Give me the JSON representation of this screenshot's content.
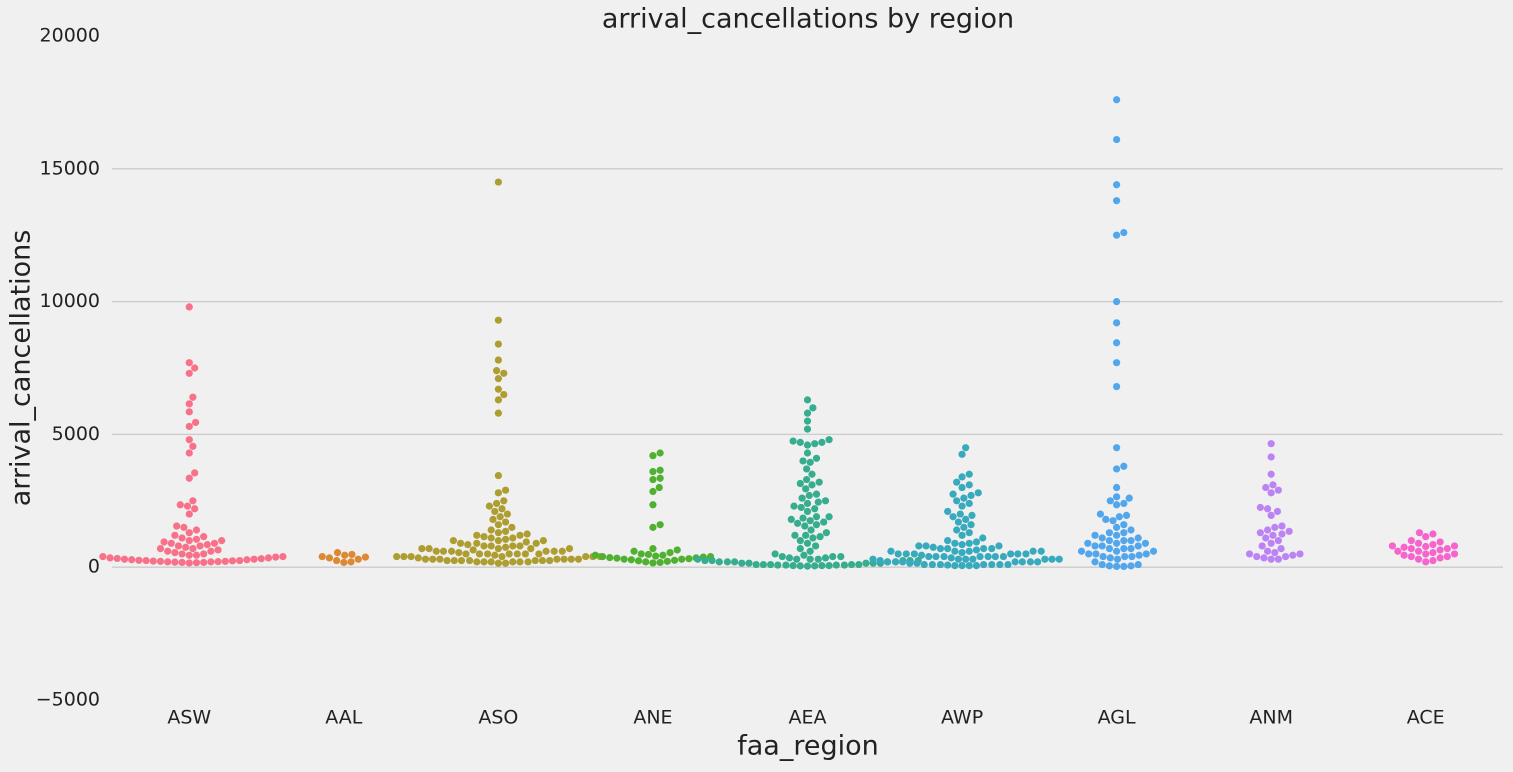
{
  "chart_data": {
    "type": "swarm",
    "title": "arrival_cancellations by region",
    "xlabel": "faa_region",
    "ylabel": "arrival_cancellations",
    "categories": [
      "ASW",
      "AAL",
      "ASO",
      "ANE",
      "AEA",
      "AWP",
      "AGL",
      "ANM",
      "ACE"
    ],
    "colors": [
      "#f77189",
      "#dc8932",
      "#ae9d31",
      "#50b131",
      "#36ad8f",
      "#38aabd",
      "#52a6ec",
      "#bb83f4",
      "#f565cc"
    ],
    "values": [
      [
        9800,
        7700,
        7500,
        7300,
        6400,
        6150,
        5850,
        5450,
        5300,
        4800,
        4550,
        4300,
        3550,
        3350,
        2500,
        2350,
        2300,
        2200,
        2000,
        1550,
        1500,
        1400,
        1300,
        1200,
        1150,
        1100,
        1050,
        1000,
        950,
        900,
        850,
        800,
        750,
        700,
        650,
        600,
        550,
        500,
        450,
        400,
        380,
        350,
        330,
        300,
        280,
        260,
        250,
        240,
        230,
        220,
        210,
        200,
        190,
        180,
        170,
        160,
        300,
        350,
        400,
        450,
        500,
        600,
        700,
        800,
        900,
        1000,
        250,
        280,
        320,
        220,
        200,
        180
      ],
      [
        550,
        480,
        450,
        400,
        380,
        350,
        300,
        250,
        200,
        180
      ],
      [
        14500,
        9300,
        8400,
        7800,
        7400,
        7300,
        7100,
        6700,
        6500,
        6300,
        5800,
        3450,
        2900,
        2800,
        2500,
        2400,
        2300,
        2200,
        2100,
        2000,
        1900,
        1800,
        1700,
        1600,
        1500,
        1400,
        1350,
        1300,
        1250,
        1200,
        1150,
        1100,
        1050,
        1000,
        950,
        900,
        850,
        800,
        750,
        700,
        650,
        600,
        550,
        500,
        450,
        400,
        350,
        300,
        250,
        200,
        150,
        1200,
        1100,
        1000,
        900,
        800,
        700,
        600,
        500,
        400,
        300,
        250,
        200,
        1000,
        900,
        800,
        700,
        600,
        500,
        400,
        300,
        250,
        200,
        150,
        800,
        700,
        600,
        500,
        400,
        300,
        250,
        200,
        700,
        600,
        500,
        400,
        300,
        250,
        200,
        600,
        500,
        400,
        300,
        250,
        200,
        500,
        400,
        300,
        250
      ],
      [
        4300,
        4200,
        3650,
        3600,
        3350,
        3300,
        3000,
        2850,
        2350,
        1600,
        1500,
        700,
        650,
        600,
        550,
        500,
        480,
        450,
        420,
        400,
        380,
        360,
        340,
        320,
        300,
        280,
        260,
        240,
        220,
        200,
        180,
        160,
        300,
        350,
        400,
        450
      ],
      [
        6300,
        6000,
        5800,
        5500,
        5200,
        4800,
        4750,
        4700,
        4700,
        4650,
        4600,
        4300,
        4100,
        4000,
        3950,
        3700,
        3500,
        3300,
        3200,
        3150,
        2950,
        2750,
        2700,
        2600,
        2450,
        2400,
        2250,
        2200,
        2100,
        1900,
        1850,
        1800,
        1750,
        1700,
        1650,
        1600,
        1550,
        1400,
        1300,
        1200,
        1150,
        1100,
        1000,
        900,
        800,
        700,
        600,
        500,
        450,
        400,
        350,
        300,
        250,
        200,
        150,
        100,
        80,
        60,
        50,
        40,
        400,
        350,
        300,
        250,
        200,
        150,
        100,
        80,
        60,
        50,
        400,
        300,
        250,
        200,
        150,
        100,
        80,
        60,
        300,
        250,
        200,
        150,
        100,
        80,
        250,
        200,
        150,
        100,
        2500,
        2300,
        3100,
        1900,
        1200
      ],
      [
        4500,
        4250,
        3500,
        3400,
        3200,
        3100,
        3000,
        2800,
        2750,
        2700,
        2600,
        2500,
        2400,
        2300,
        2100,
        2000,
        1950,
        1900,
        1800,
        1700,
        1600,
        1500,
        1400,
        1300,
        1200,
        1100,
        1000,
        950,
        900,
        850,
        800,
        750,
        700,
        650,
        600,
        550,
        500,
        450,
        400,
        350,
        300,
        250,
        200,
        150,
        100,
        80,
        60,
        900,
        800,
        700,
        600,
        500,
        400,
        300,
        200,
        150,
        100,
        60,
        800,
        700,
        600,
        500,
        400,
        300,
        200,
        100,
        60,
        700,
        600,
        500,
        400,
        300,
        200,
        100,
        60,
        600,
        500,
        400,
        300,
        200,
        100,
        500,
        400,
        300,
        200,
        100,
        400,
        300,
        200,
        100
      ],
      [
        17600,
        16100,
        14400,
        13800,
        12600,
        12500,
        10000,
        9200,
        8450,
        7700,
        6800,
        4500,
        3800,
        3700,
        3000,
        2650,
        2600,
        2500,
        2400,
        2350,
        2000,
        1950,
        1900,
        1800,
        1750,
        1600,
        1500,
        1400,
        1300,
        1200,
        1100,
        1000,
        900,
        800,
        700,
        600,
        500,
        450,
        400,
        350,
        300,
        200,
        100,
        50,
        30,
        1300,
        1200,
        1100,
        1000,
        900,
        800,
        700,
        600,
        500,
        400,
        1000,
        900,
        800,
        700,
        600,
        500,
        400,
        100,
        50,
        30
      ],
      [
        4650,
        4150,
        3500,
        3100,
        3000,
        2900,
        2800,
        2250,
        2200,
        2100,
        1950,
        1550,
        1500,
        1400,
        1350,
        1300,
        1250,
        1200,
        1100,
        1000,
        900,
        800,
        700,
        600,
        550,
        500,
        450,
        400,
        350,
        300,
        500,
        400,
        300
      ],
      [
        1300,
        1250,
        1150,
        1000,
        950,
        900,
        850,
        800,
        780,
        750,
        700,
        650,
        600,
        550,
        500,
        450,
        400,
        350,
        300,
        250,
        200,
        800,
        700,
        600,
        500,
        400
      ]
    ],
    "ylim": [
      -5000,
      20000
    ],
    "yticks": [
      {
        "value": -5000,
        "label": "−5000"
      },
      0,
      5000,
      10000,
      15000,
      20000
    ],
    "grid": true
  }
}
